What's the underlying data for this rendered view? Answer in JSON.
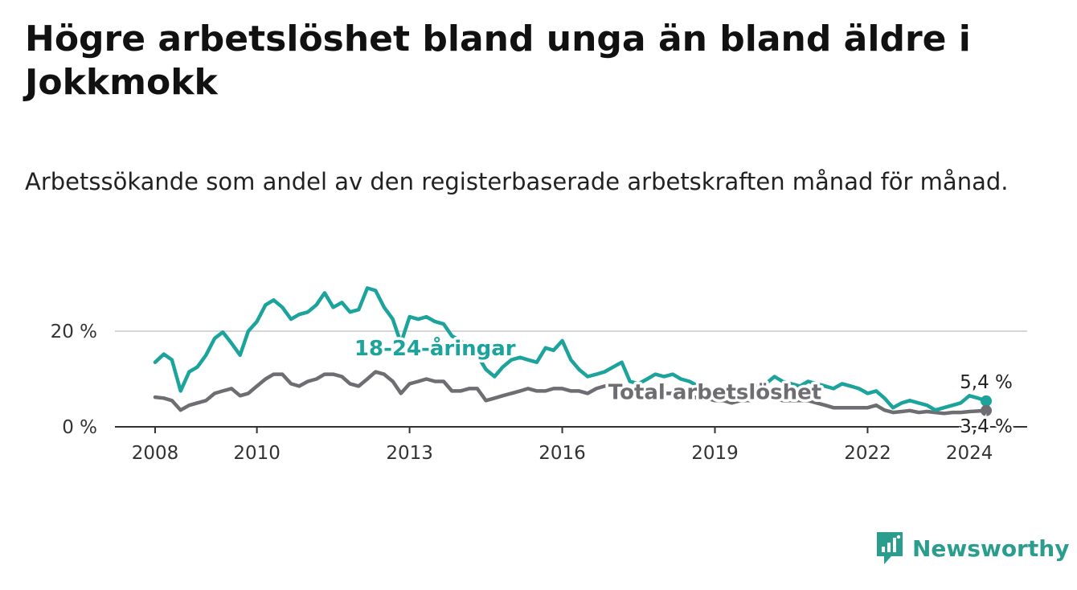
{
  "title": "Högre arbetslöshet bland unga än bland äldre i Jokkmokk",
  "subtitle": "Arbetssökande som andel av den registerbaserade arbetskraften månad för månad.",
  "brand": {
    "name": "Newsworthy",
    "color": "#2a9d8f"
  },
  "chart_data": {
    "type": "line",
    "title": "Högre arbetslöshet bland unga än bland äldre i Jokkmokk",
    "subtitle": "Arbetssökande som andel av den registerbaserade arbetskraften månad för månad.",
    "xlabel": "",
    "ylabel": "",
    "unit": "%",
    "x_range": [
      2008.0,
      2024.42
    ],
    "ylim": [
      0,
      30
    ],
    "y_ticks": [
      {
        "value": 0,
        "label": "0 %"
      },
      {
        "value": 20,
        "label": "20 %"
      }
    ],
    "x_ticks": [
      {
        "value": 2008,
        "label": "2008"
      },
      {
        "value": 2010,
        "label": "2010"
      },
      {
        "value": 2013,
        "label": "2013"
      },
      {
        "value": 2016,
        "label": "2016"
      },
      {
        "value": 2019,
        "label": "2019"
      },
      {
        "value": 2022,
        "label": "2022"
      },
      {
        "value": 2024,
        "label": "2024"
      }
    ],
    "grid": true,
    "series": [
      {
        "name": "18-24-åringar",
        "color": "#1ba39c",
        "end_label": "5,4 %",
        "label_at": [
          2013.5,
          15.0
        ],
        "points": [
          [
            2008.0,
            13.5
          ],
          [
            2008.17,
            15.2
          ],
          [
            2008.33,
            14.0
          ],
          [
            2008.5,
            7.5
          ],
          [
            2008.67,
            11.5
          ],
          [
            2008.83,
            12.5
          ],
          [
            2009.0,
            15.0
          ],
          [
            2009.17,
            18.5
          ],
          [
            2009.33,
            19.8
          ],
          [
            2009.5,
            17.5
          ],
          [
            2009.67,
            15.0
          ],
          [
            2009.83,
            20.0
          ],
          [
            2010.0,
            22.0
          ],
          [
            2010.17,
            25.5
          ],
          [
            2010.33,
            26.5
          ],
          [
            2010.5,
            25.0
          ],
          [
            2010.67,
            22.5
          ],
          [
            2010.83,
            23.5
          ],
          [
            2011.0,
            24.0
          ],
          [
            2011.17,
            25.5
          ],
          [
            2011.33,
            28.0
          ],
          [
            2011.5,
            25.0
          ],
          [
            2011.67,
            26.0
          ],
          [
            2011.83,
            24.0
          ],
          [
            2012.0,
            24.5
          ],
          [
            2012.17,
            29.0
          ],
          [
            2012.33,
            28.5
          ],
          [
            2012.5,
            25.0
          ],
          [
            2012.67,
            22.5
          ],
          [
            2012.83,
            17.5
          ],
          [
            2013.0,
            23.0
          ],
          [
            2013.17,
            22.5
          ],
          [
            2013.33,
            23.0
          ],
          [
            2013.5,
            22.0
          ],
          [
            2013.67,
            21.5
          ],
          [
            2013.83,
            19.0
          ],
          [
            2014.0,
            18.0
          ],
          [
            2014.17,
            16.5
          ],
          [
            2014.33,
            15.0
          ],
          [
            2014.5,
            12.0
          ],
          [
            2014.67,
            10.5
          ],
          [
            2014.83,
            12.5
          ],
          [
            2015.0,
            14.0
          ],
          [
            2015.17,
            14.5
          ],
          [
            2015.33,
            14.0
          ],
          [
            2015.5,
            13.5
          ],
          [
            2015.67,
            16.5
          ],
          [
            2015.83,
            16.0
          ],
          [
            2016.0,
            18.0
          ],
          [
            2016.17,
            14.0
          ],
          [
            2016.33,
            12.0
          ],
          [
            2016.5,
            10.5
          ],
          [
            2016.67,
            11.0
          ],
          [
            2016.83,
            11.5
          ],
          [
            2017.0,
            12.5
          ],
          [
            2017.17,
            13.5
          ],
          [
            2017.33,
            9.5
          ],
          [
            2017.5,
            9.0
          ],
          [
            2017.67,
            10.0
          ],
          [
            2017.83,
            11.0
          ],
          [
            2018.0,
            10.5
          ],
          [
            2018.17,
            11.0
          ],
          [
            2018.33,
            10.0
          ],
          [
            2018.5,
            9.5
          ],
          [
            2018.67,
            8.5
          ],
          [
            2018.83,
            8.0
          ],
          [
            2019.0,
            7.5
          ],
          [
            2019.17,
            7.0
          ],
          [
            2019.33,
            6.5
          ],
          [
            2019.5,
            7.5
          ],
          [
            2019.67,
            8.0
          ],
          [
            2019.83,
            8.5
          ],
          [
            2020.0,
            9.0
          ],
          [
            2020.17,
            10.5
          ],
          [
            2020.33,
            9.5
          ],
          [
            2020.5,
            9.0
          ],
          [
            2020.67,
            8.5
          ],
          [
            2020.83,
            9.5
          ],
          [
            2021.0,
            9.0
          ],
          [
            2021.17,
            8.5
          ],
          [
            2021.33,
            8.0
          ],
          [
            2021.5,
            9.0
          ],
          [
            2021.67,
            8.5
          ],
          [
            2021.83,
            8.0
          ],
          [
            2022.0,
            7.0
          ],
          [
            2022.17,
            7.5
          ],
          [
            2022.33,
            6.0
          ],
          [
            2022.5,
            4.0
          ],
          [
            2022.67,
            5.0
          ],
          [
            2022.83,
            5.5
          ],
          [
            2023.0,
            5.0
          ],
          [
            2023.17,
            4.5
          ],
          [
            2023.33,
            3.5
          ],
          [
            2023.5,
            4.0
          ],
          [
            2023.67,
            4.5
          ],
          [
            2023.83,
            5.0
          ],
          [
            2024.0,
            6.5
          ],
          [
            2024.17,
            6.0
          ],
          [
            2024.33,
            5.4
          ]
        ]
      },
      {
        "name": "Total arbetslöshet",
        "color": "#6e6d72",
        "end_label": "3,4 %",
        "label_at": [
          2019.0,
          5.8
        ],
        "points": [
          [
            2008.0,
            6.2
          ],
          [
            2008.17,
            6.0
          ],
          [
            2008.33,
            5.5
          ],
          [
            2008.5,
            3.5
          ],
          [
            2008.67,
            4.5
          ],
          [
            2008.83,
            5.0
          ],
          [
            2009.0,
            5.5
          ],
          [
            2009.17,
            7.0
          ],
          [
            2009.33,
            7.5
          ],
          [
            2009.5,
            8.0
          ],
          [
            2009.67,
            6.5
          ],
          [
            2009.83,
            7.0
          ],
          [
            2010.0,
            8.5
          ],
          [
            2010.17,
            10.0
          ],
          [
            2010.33,
            11.0
          ],
          [
            2010.5,
            11.0
          ],
          [
            2010.67,
            9.0
          ],
          [
            2010.83,
            8.5
          ],
          [
            2011.0,
            9.5
          ],
          [
            2011.17,
            10.0
          ],
          [
            2011.33,
            11.0
          ],
          [
            2011.5,
            11.0
          ],
          [
            2011.67,
            10.5
          ],
          [
            2011.83,
            9.0
          ],
          [
            2012.0,
            8.5
          ],
          [
            2012.17,
            10.0
          ],
          [
            2012.33,
            11.5
          ],
          [
            2012.5,
            11.0
          ],
          [
            2012.67,
            9.5
          ],
          [
            2012.83,
            7.0
          ],
          [
            2013.0,
            9.0
          ],
          [
            2013.17,
            9.5
          ],
          [
            2013.33,
            10.0
          ],
          [
            2013.5,
            9.5
          ],
          [
            2013.67,
            9.5
          ],
          [
            2013.83,
            7.5
          ],
          [
            2014.0,
            7.5
          ],
          [
            2014.17,
            8.0
          ],
          [
            2014.33,
            8.0
          ],
          [
            2014.5,
            5.5
          ],
          [
            2014.67,
            6.0
          ],
          [
            2014.83,
            6.5
          ],
          [
            2015.0,
            7.0
          ],
          [
            2015.17,
            7.5
          ],
          [
            2015.33,
            8.0
          ],
          [
            2015.5,
            7.5
          ],
          [
            2015.67,
            7.5
          ],
          [
            2015.83,
            8.0
          ],
          [
            2016.0,
            8.0
          ],
          [
            2016.17,
            7.5
          ],
          [
            2016.33,
            7.5
          ],
          [
            2016.5,
            7.0
          ],
          [
            2016.67,
            8.0
          ],
          [
            2016.83,
            8.5
          ],
          [
            2017.0,
            8.5
          ],
          [
            2017.17,
            8.5
          ],
          [
            2017.33,
            7.5
          ],
          [
            2017.5,
            7.0
          ],
          [
            2017.67,
            7.0
          ],
          [
            2017.83,
            7.5
          ],
          [
            2018.0,
            7.0
          ],
          [
            2018.17,
            7.0
          ],
          [
            2018.33,
            6.5
          ],
          [
            2018.5,
            6.5
          ],
          [
            2018.67,
            6.0
          ],
          [
            2018.83,
            6.0
          ],
          [
            2019.0,
            5.5
          ],
          [
            2019.17,
            5.5
          ],
          [
            2019.33,
            5.0
          ],
          [
            2019.5,
            5.5
          ],
          [
            2019.67,
            5.5
          ],
          [
            2019.83,
            6.0
          ],
          [
            2020.0,
            6.0
          ],
          [
            2020.17,
            6.0
          ],
          [
            2020.33,
            5.5
          ],
          [
            2020.5,
            5.5
          ],
          [
            2020.67,
            5.5
          ],
          [
            2020.83,
            5.5
          ],
          [
            2021.0,
            5.0
          ],
          [
            2021.17,
            4.5
          ],
          [
            2021.33,
            4.0
          ],
          [
            2021.5,
            4.0
          ],
          [
            2021.67,
            4.0
          ],
          [
            2021.83,
            4.0
          ],
          [
            2022.0,
            4.0
          ],
          [
            2022.17,
            4.5
          ],
          [
            2022.33,
            3.5
          ],
          [
            2022.5,
            3.0
          ],
          [
            2022.67,
            3.2
          ],
          [
            2022.83,
            3.4
          ],
          [
            2023.0,
            3.0
          ],
          [
            2023.17,
            3.2
          ],
          [
            2023.33,
            3.0
          ],
          [
            2023.5,
            2.8
          ],
          [
            2023.67,
            3.0
          ],
          [
            2023.83,
            3.0
          ],
          [
            2024.0,
            3.2
          ],
          [
            2024.17,
            3.3
          ],
          [
            2024.33,
            3.4
          ]
        ]
      }
    ]
  }
}
